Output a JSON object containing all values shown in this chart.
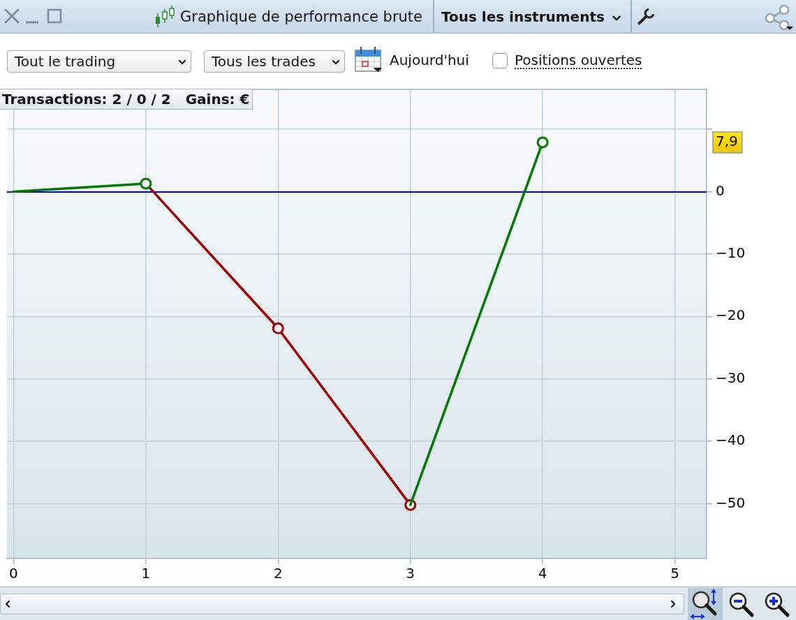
{
  "chart_data": {
    "type": "line",
    "title": "Graphique de performance brute",
    "annotations": [
      "Tous les instruments",
      "Tout le trading",
      "Tous les trades",
      "Aujourd'hui",
      "Positions ouvertes",
      "Transactions: 2 / 0 / 2   Gains: €"
    ],
    "x": [
      0,
      1,
      2,
      3,
      4
    ],
    "series": [
      {
        "color": "#007a00",
        "values": [
          0,
          1.3,
          null,
          -50.2,
          7.9
        ],
        "colors": [
          null,
          "#007a00",
          null,
          null,
          "#007a00"
        ]
      },
      {
        "color": "#a00000",
        "values": [
          null,
          1.3,
          -21.9,
          -50.2,
          null
        ],
        "colors": [
          null,
          null,
          "#a00000",
          "#a00000",
          null
        ]
      }
    ],
    "xlim": [
      -0.05,
      5.24
    ],
    "xticks": [
      0,
      1,
      2,
      3,
      4,
      5
    ],
    "ylim": [
      -58.8,
      16.4
    ],
    "yticks": [
      {
        "value": 10,
        "label": null
      },
      {
        "value": 7.9,
        "label": "7,9"
      },
      0,
      {
        "value": -10,
        "label": "−10"
      },
      {
        "value": -20,
        "label": "−20"
      },
      {
        "value": -30,
        "label": "−30"
      },
      {
        "value": -40,
        "label": "−40"
      },
      {
        "value": -50,
        "label": "−50"
      }
    ],
    "grid": true,
    "marker": "circle",
    "ref_lines": [
      {
        "axis": "y",
        "value": 0,
        "color": "#0000cc"
      }
    ]
  }
}
